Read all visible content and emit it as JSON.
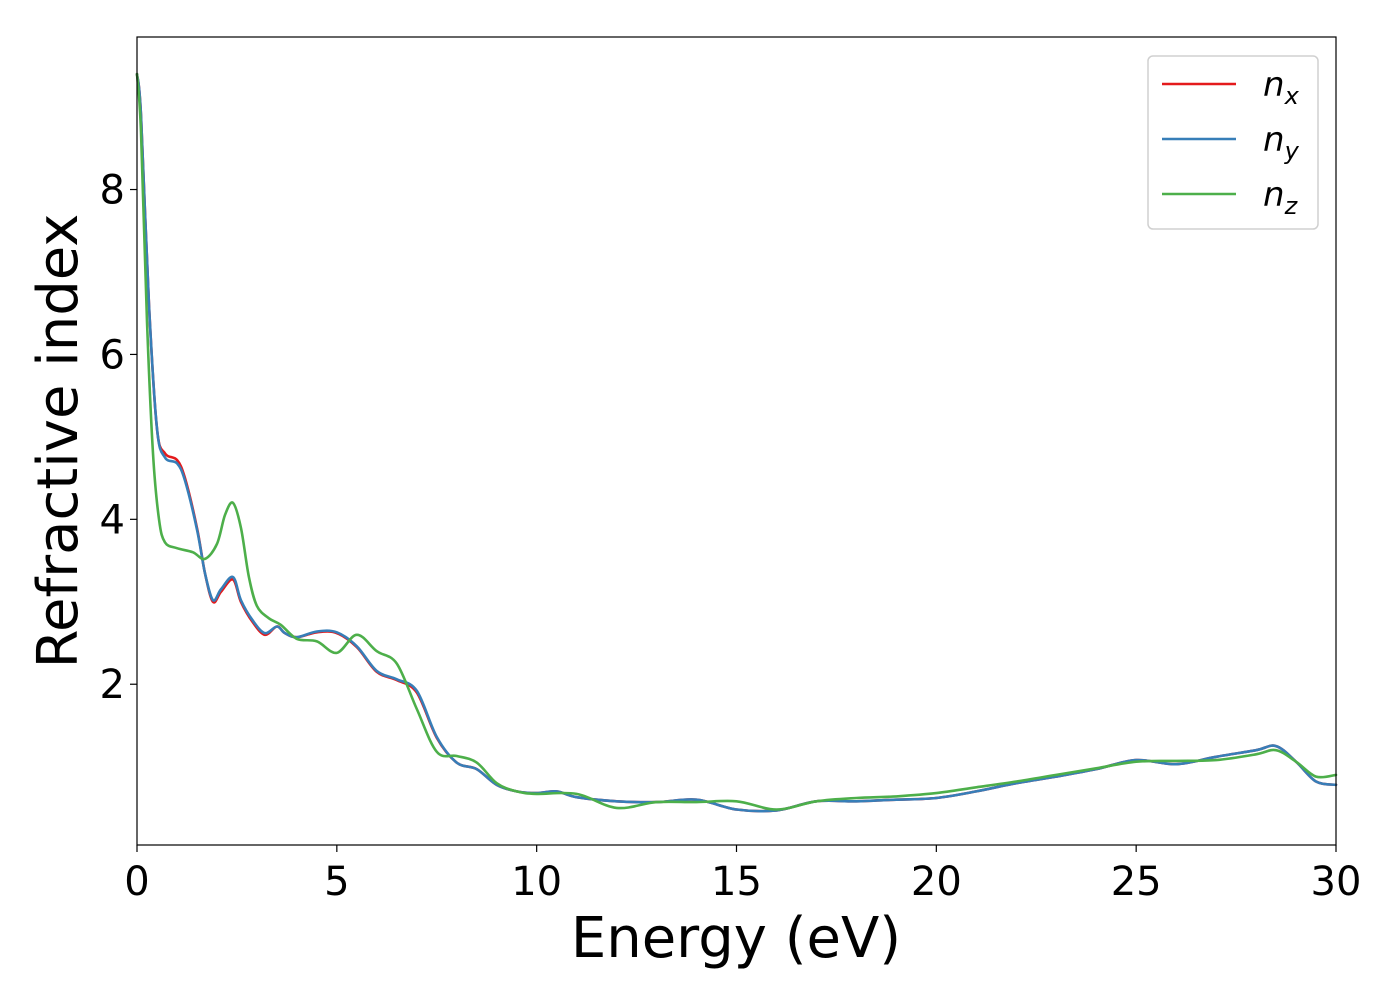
{
  "chart_data": {
    "type": "line",
    "xlabel": "Energy (eV)",
    "ylabel": "Refractive index",
    "xlim": [
      0,
      30
    ],
    "ylim": [
      0.05,
      9.85
    ],
    "xticks": [
      0,
      5,
      10,
      15,
      20,
      25,
      30
    ],
    "yticks": [
      2,
      4,
      6,
      8
    ],
    "grid": false,
    "legend_position": "top-right",
    "series": [
      {
        "name": "n_x",
        "label_main": "n",
        "label_sub": "x",
        "color": "#e41a1c",
        "x": [
          0,
          0.1,
          0.3,
          0.5,
          0.7,
          1.0,
          1.2,
          1.5,
          1.7,
          1.9,
          2.1,
          2.4,
          2.6,
          2.9,
          3.2,
          3.5,
          3.7,
          4.0,
          4.5,
          5.0,
          5.5,
          6.0,
          6.5,
          7.0,
          7.5,
          8.0,
          8.5,
          9.0,
          9.5,
          10.0,
          10.5,
          11.0,
          12.0,
          13.0,
          14.0,
          15.0,
          16.0,
          17.0,
          18.0,
          19.0,
          20.0,
          21.0,
          22.0,
          23.0,
          24.0,
          25.0,
          26.0,
          27.0,
          28.0,
          28.5,
          29.0,
          29.5,
          30.0
        ],
        "y": [
          9.4,
          8.9,
          6.6,
          5.1,
          4.8,
          4.72,
          4.5,
          3.9,
          3.35,
          3.0,
          3.12,
          3.27,
          3.0,
          2.75,
          2.6,
          2.7,
          2.62,
          2.57,
          2.63,
          2.62,
          2.45,
          2.15,
          2.05,
          1.9,
          1.35,
          1.05,
          0.97,
          0.78,
          0.7,
          0.68,
          0.7,
          0.63,
          0.58,
          0.57,
          0.6,
          0.48,
          0.47,
          0.58,
          0.58,
          0.6,
          0.62,
          0.7,
          0.8,
          0.88,
          0.97,
          1.08,
          1.03,
          1.12,
          1.2,
          1.25,
          1.06,
          0.82,
          0.78
        ]
      },
      {
        "name": "n_y",
        "label_main": "n",
        "label_sub": "y",
        "color": "#377eb8",
        "x": [
          0,
          0.1,
          0.3,
          0.5,
          0.7,
          1.0,
          1.2,
          1.5,
          1.7,
          1.9,
          2.1,
          2.4,
          2.6,
          2.9,
          3.2,
          3.5,
          3.7,
          4.0,
          4.5,
          5.0,
          5.5,
          6.0,
          6.5,
          7.0,
          7.5,
          8.0,
          8.5,
          9.0,
          9.5,
          10.0,
          10.5,
          11.0,
          12.0,
          13.0,
          14.0,
          15.0,
          16.0,
          17.0,
          18.0,
          19.0,
          20.0,
          21.0,
          22.0,
          23.0,
          24.0,
          25.0,
          26.0,
          27.0,
          28.0,
          28.5,
          29.0,
          29.5,
          30.0
        ],
        "y": [
          9.4,
          8.9,
          6.6,
          5.1,
          4.75,
          4.68,
          4.47,
          3.88,
          3.35,
          3.02,
          3.15,
          3.3,
          3.02,
          2.77,
          2.62,
          2.7,
          2.62,
          2.57,
          2.64,
          2.63,
          2.46,
          2.16,
          2.06,
          1.92,
          1.36,
          1.05,
          0.97,
          0.78,
          0.7,
          0.68,
          0.7,
          0.63,
          0.58,
          0.57,
          0.6,
          0.48,
          0.47,
          0.58,
          0.58,
          0.6,
          0.62,
          0.7,
          0.8,
          0.88,
          0.97,
          1.08,
          1.03,
          1.12,
          1.2,
          1.25,
          1.06,
          0.82,
          0.78
        ]
      },
      {
        "name": "n_z",
        "label_main": "n",
        "label_sub": "z",
        "color": "#4daf4a",
        "x": [
          0,
          0.1,
          0.25,
          0.4,
          0.55,
          0.7,
          1.0,
          1.4,
          1.7,
          2.0,
          2.2,
          2.4,
          2.6,
          2.8,
          3.0,
          3.3,
          3.6,
          4.0,
          4.5,
          5.0,
          5.5,
          6.0,
          6.5,
          7.0,
          7.5,
          8.0,
          8.5,
          9.0,
          9.5,
          10.0,
          11.0,
          12.0,
          13.0,
          14.0,
          15.0,
          16.0,
          17.0,
          18.0,
          19.0,
          20.0,
          21.0,
          22.0,
          23.0,
          24.0,
          25.0,
          26.0,
          27.0,
          28.0,
          28.5,
          29.0,
          29.5,
          30.0
        ],
        "y": [
          9.4,
          8.7,
          6.4,
          4.8,
          4.0,
          3.72,
          3.65,
          3.6,
          3.52,
          3.7,
          4.05,
          4.2,
          3.9,
          3.3,
          2.95,
          2.8,
          2.72,
          2.55,
          2.52,
          2.38,
          2.6,
          2.4,
          2.25,
          1.7,
          1.18,
          1.13,
          1.05,
          0.8,
          0.7,
          0.67,
          0.67,
          0.5,
          0.57,
          0.57,
          0.58,
          0.48,
          0.58,
          0.62,
          0.64,
          0.68,
          0.75,
          0.82,
          0.9,
          0.98,
          1.06,
          1.07,
          1.08,
          1.15,
          1.2,
          1.06,
          0.88,
          0.9
        ]
      }
    ]
  }
}
